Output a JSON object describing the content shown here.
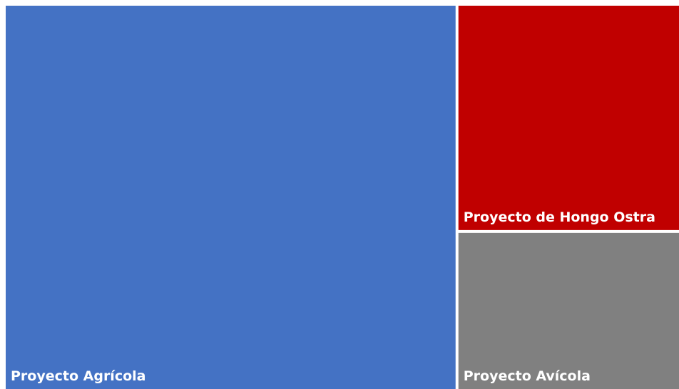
{
  "chart_data": {
    "type": "treemap",
    "title": "",
    "items": [
      {
        "name": "Proyecto Agrícola",
        "value": 0.671,
        "color": "#4472C4"
      },
      {
        "name": "Proyecto de Hongo Ostra",
        "value": 0.194,
        "color": "#C00000"
      },
      {
        "name": "Proyecto Avícola",
        "value": 0.135,
        "color": "#808080"
      }
    ]
  }
}
